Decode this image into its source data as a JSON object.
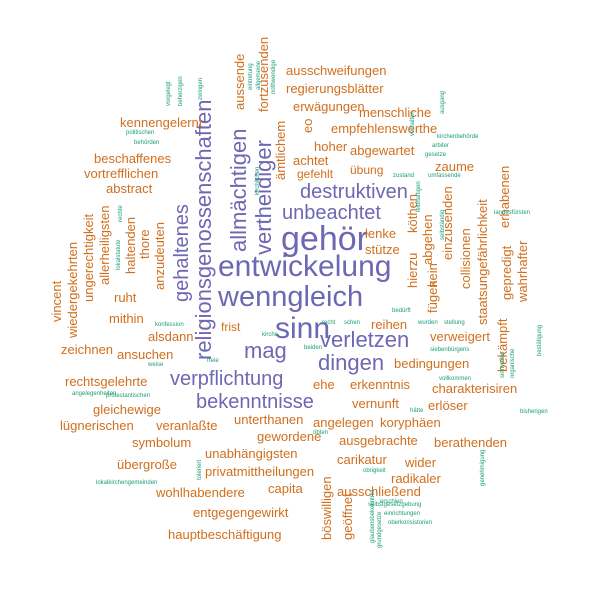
{
  "colors": {
    "purple": "#6e67b3",
    "orange": "#d16f1e",
    "green": "#1b9e77"
  },
  "words": {
    "gehoer": "gehör",
    "entwickelung": "entwickelung",
    "wenngleich": "wenngleich",
    "sinn": "sinn",
    "mag": "mag",
    "verletzen": "verletzen",
    "dingen": "dingen",
    "verpflichtung": "verpflichtung",
    "bekenntnisse": "bekenntnisse",
    "unbeachtet": "unbeachtet",
    "destruktiven": "destruktiven",
    "religionsgenossenschaften": "religionsgenossenschaften",
    "allmaechtigen": "allmächtigen",
    "vertheidiger": "vertheidiger",
    "gehaltenes": "gehaltenes",
    "ausschweifungen": "ausschweifungen",
    "regierungsblaetter": "regierungsblätter",
    "erwaegungen": "erwägungen",
    "menschliche": "menschliche",
    "empfehlenswerthe": "empfehlenswerthe",
    "kennengelernt": "kennengelernt",
    "hoher": "hoher",
    "abgewartet": "abgewartet",
    "achtet": "achtet",
    "gefehlt": "gefehlt",
    "uebung": "übung",
    "zaume": "zaume",
    "beschaffenes": "beschaffenes",
    "vortrefflichen": "vortrefflichen",
    "abstract": "abstract",
    "lenke": "lenke",
    "stuetze": "stütze",
    "ruht": "ruht",
    "mithin": "mithin",
    "frist": "frist",
    "alsdann": "alsdann",
    "ansuchen": "ansuchen",
    "zeichnen": "zeichnen",
    "reihen": "reihen",
    "verweigert": "verweigert",
    "bedingungen": "bedingungen",
    "rechtsgelehrte": "rechtsgelehrte",
    "ehe": "ehe",
    "erkenntnis": "erkenntnis",
    "charakterisiren": "charakterisiren",
    "gleichewige": "gleichewige",
    "vernunft": "vernunft",
    "erloeser": "erlöser",
    "luegnerischen": "lügnerischen",
    "veranlasste": "veranlaßte",
    "unterthanen": "unterthanen",
    "angelegen": "angelegen",
    "koryphaeen": "koryphäen",
    "gewordene": "gewordene",
    "ausgebrachte": "ausgebrachte",
    "berathenden": "berathenden",
    "symbolum": "symbolum",
    "unabhaengigsten": "unabhängigsten",
    "carikatur": "carikatur",
    "uebergrosse": "übergroße",
    "privatmittheilungen": "privatmittheilungen",
    "wider": "wider",
    "radikaler": "radikaler",
    "wohlhabendere": "wohlhabendere",
    "capita": "capita",
    "ausschliessend": "ausschließend",
    "entgegengewirkt": "entgegengewirkt",
    "hauptbeschaeftigung": "hauptbeschäftigung",
    "aussende": "aussende",
    "fortzusenden": "fortzusenden",
    "amtlichem": "ämtlichem",
    "eo": "eo",
    "hierzu": "hierzu",
    "abgehen": "abgehen",
    "koethen": "köthen",
    "einzusenden": "einzusenden",
    "kein": "kein",
    "fuegen": "fügen",
    "collisionen": "collisionen",
    "staatsungefaehrlichkeit": "staatsungefährlichkeit",
    "erhabenen": "erhabenen",
    "gepredigt": "gepredigt",
    "wahrhafter": "wahrhafter",
    "bekaempft": "bekämpft",
    "vincent": "vincent",
    "wiedergekehrten": "wiedergekehrten",
    "ungerechtigkeit": "ungerechtigkeit",
    "allerheiligsten": "allerheiligsten",
    "haltenden": "haltenden",
    "thore": "thore",
    "anzudeuten": "anzudeuten",
    "boeswilligen": "böswilligen",
    "geoeffnet": "geöffnet",
    "small_a": "vorgelegt",
    "small_b": "beherzigen",
    "small_c": "zwingen",
    "small_d": "eintretung",
    "small_e": "allgemeine",
    "small_f": "nothwendige",
    "small_g": "politischen",
    "small_h": "behörden",
    "small_i": "konfession",
    "small_j": "kirche",
    "small_k": "recht",
    "small_l": "schen",
    "small_m": "stellung",
    "small_n": "wurden",
    "small_o": "bedürft",
    "small_p": "beiden",
    "small_q": "siebenbürgens",
    "small_r": "vollkommen",
    "small_s": "protestantischen",
    "small_t": "angelegenheiten",
    "small_u": "weise",
    "small_v": "freie",
    "small_w": "hätte",
    "small_x": "bisherigen",
    "small_y": "obrigkeit",
    "small_z": "erschien",
    "small_aa": "selbstgesetzgebung",
    "small_ab": "einrichtungen",
    "small_ac": "oberkonsistorien",
    "small_ad": "lokalkirchengemeinden",
    "small_ae": "landesfürsten",
    "small_af": "kirchenbehörde",
    "small_ag": "arbiter",
    "small_ah": "gesetze",
    "small_ai": "umfassende",
    "small_aj": "zustand",
    "small_ak": "bestätigung",
    "small_al": "genehmigung",
    "small_am": "sinnvolles",
    "small_an": "organische",
    "small_ao": "toleriert",
    "small_ap": "selbständig",
    "small_aq": "verhalten",
    "small_ar": "leibhaftigen",
    "small_as": "glaubensbekenntnis",
    "small_at": "grundgesetze",
    "small_au": "lokalstatute",
    "small_av": "rechte",
    "small_aw": "öbten",
    "small_ax": "ausgang",
    "small_ay": "kirchlichen"
  }
}
